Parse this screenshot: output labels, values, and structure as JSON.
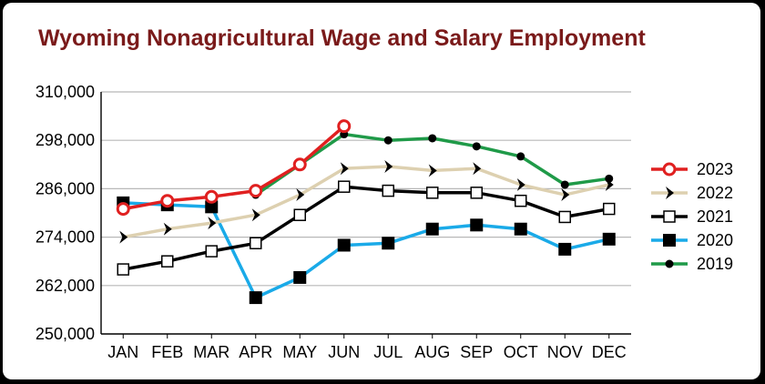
{
  "chart_data": {
    "type": "line",
    "title": "Wyoming Nonagricultural Wage and Salary Employment",
    "xlabel": "",
    "ylabel": "",
    "categories": [
      "JAN",
      "FEB",
      "MAR",
      "APR",
      "MAY",
      "JUN",
      "JUL",
      "AUG",
      "SEP",
      "OCT",
      "NOV",
      "DEC"
    ],
    "ylim": [
      250000,
      310000
    ],
    "yticks": [
      250000,
      262000,
      274000,
      286000,
      298000,
      310000
    ],
    "ytick_labels": [
      "250,000",
      "262,000",
      "274,000",
      "286,000",
      "298,000",
      "310,000"
    ],
    "grid": true,
    "legend_position": "right",
    "series": [
      {
        "name": "2023",
        "color": "#e02020",
        "marker": "open-circle",
        "values": [
          281000,
          283000,
          284000,
          285500,
          292000,
          301500,
          null,
          null,
          null,
          null,
          null,
          null
        ]
      },
      {
        "name": "2022",
        "color": "#ddd0b0",
        "marker": "chevron",
        "values": [
          274000,
          276000,
          277500,
          279500,
          284500,
          291000,
          291500,
          290500,
          291000,
          287000,
          284500,
          287000
        ]
      },
      {
        "name": "2021",
        "color": "#000000",
        "marker": "open-square",
        "values": [
          266000,
          268000,
          270500,
          272500,
          279500,
          286500,
          285500,
          285000,
          285000,
          283000,
          279000,
          281000
        ]
      },
      {
        "name": "2020",
        "color": "#1aaae8",
        "marker": "filled-square",
        "values": [
          282500,
          282000,
          281500,
          259000,
          264000,
          272000,
          272500,
          276000,
          277000,
          276000,
          271000,
          273500
        ]
      },
      {
        "name": "2019",
        "color": "#1f9a48",
        "marker": "filled-circle",
        "values": [
          null,
          null,
          null,
          284500,
          null,
          299500,
          298000,
          298500,
          296500,
          294000,
          287000,
          288500
        ]
      }
    ]
  }
}
